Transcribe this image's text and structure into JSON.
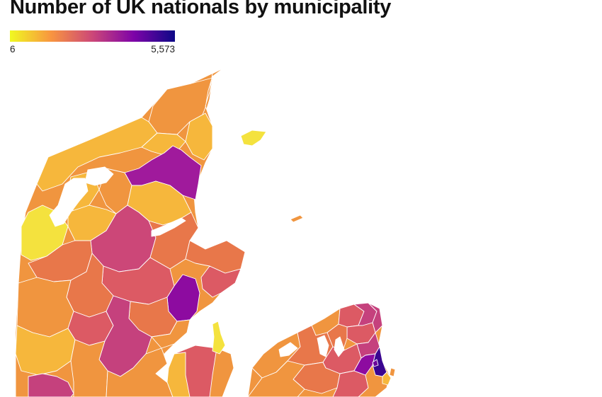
{
  "title": "Number of UK nationals by municipality",
  "legend": {
    "min_label": "6",
    "max_label": "5,573",
    "min_value": 6,
    "max_value": 5573,
    "color_scale": [
      "#f0f921",
      "#f89540",
      "#cc4778",
      "#7e03a8",
      "#0d0887"
    ]
  },
  "map": {
    "region": "Denmark",
    "colors": {
      "pale_yellow": "#f4e23e",
      "yellow_orange": "#f6b73c",
      "orange": "#f0953f",
      "dark_orange": "#e8774a",
      "red_pink": "#dc5a64",
      "magenta": "#c5417d",
      "purple": "#8d0ba0",
      "deep_purple": "#3a0590"
    }
  }
}
